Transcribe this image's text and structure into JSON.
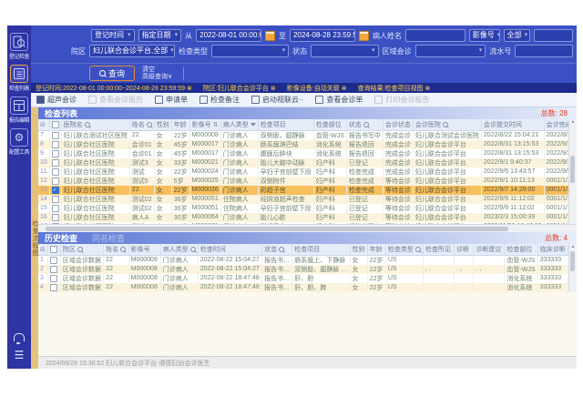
{
  "sidebar": {
    "items": [
      {
        "label": "登记检查"
      },
      {
        "label": "检查列表",
        "active": true
      },
      {
        "label": "报告编辑"
      },
      {
        "label": "配置工具"
      }
    ]
  },
  "side_tab": {
    "label": "检查流程图"
  },
  "filters": {
    "reg_time_value": "登记时间",
    "date_mode_value": "指定日期",
    "from_label": "从",
    "from_value": "2022-08-01 00:00:00",
    "to_label": "至",
    "to_value": "2024-08-28 23:59:59",
    "patient_name_label": "病人姓名",
    "patient_name_value": "",
    "image_no_label": "影像号",
    "image_no_all": "全部",
    "image_no_value": "",
    "campus_label": "院区",
    "campus_value": "妇儿联合会诊平台,全部",
    "exam_type_label": "检查类型",
    "exam_type_value": "",
    "status_label": "状态",
    "status_value": "",
    "region_label": "区域会诊",
    "region_value": "",
    "serial_label": "流水号",
    "serial_value": "",
    "query_label": "查询",
    "clear_label": "清空",
    "advanced_label": "高级查询∨",
    "chips": [
      "登记时间:2022-08-01 00:00:00~2024-08-28 23:59:59",
      "院区:妇儿联合会诊平台",
      "影像设备:自动关联",
      "查询结果:检查项目视图"
    ]
  },
  "toolbar": {
    "items": [
      {
        "label": "超声会诊",
        "disabled": false
      },
      {
        "label": "查看会诊报告",
        "disabled": true
      },
      {
        "label": "申请单",
        "disabled": false
      },
      {
        "label": "检查备注",
        "disabled": false
      },
      {
        "label": "启动视联云··",
        "disabled": false
      },
      {
        "label": "查看会诊单",
        "disabled": false
      },
      {
        "label": "打印会诊报告",
        "disabled": true
      }
    ]
  },
  "main_table": {
    "title": "检查列表",
    "total_label": "总数:",
    "total": "28",
    "columns": [
      {
        "label": "医院名",
        "icon": "search"
      },
      {
        "label": "姓名",
        "icon": "search"
      },
      {
        "label": "性别"
      },
      {
        "label": "年龄"
      },
      {
        "label": "影像号",
        "icon": "sort"
      },
      {
        "label": "病人类型",
        "icon": "filter"
      },
      {
        "label": "检查项目"
      },
      {
        "label": "检查部位"
      },
      {
        "label": "状态",
        "icon": "search"
      },
      {
        "label": "会诊状态"
      },
      {
        "label": "会诊医院",
        "icon": "search"
      },
      {
        "label": "会诊提交时间"
      },
      {
        "label": "会诊完成时间"
      },
      {
        "label": "流水号"
      },
      {
        "label": "检查类型",
        "icon": "search"
      }
    ],
    "rows": [
      {
        "num": "7",
        "checked": false,
        "selected": false,
        "cells": [
          "妇儿联合测试社区医院",
          "22",
          "女",
          "22岁",
          "M000008",
          "门诊病人",
          "双侧股、腘静脉",
          "血管-WJS",
          "报告书写中",
          "完成会诊",
          "妇儿联合测试会诊医院",
          "2022/8/22 15:04:21",
          "2022/8/22 16:18:11",
          "test7",
          "US"
        ]
      },
      {
        "num": "8",
        "checked": false,
        "selected": false,
        "cells": [
          "妇儿联合社区医院",
          "会诊01",
          "女",
          "45岁",
          "M000017",
          "门诊病人",
          "肠系膜淋巴结",
          "消化系统",
          "报告退回",
          "完成会诊",
          "妇儿联合会诊平台",
          "2022/8/31 13:15:53",
          "2022/9/2 14:32:26",
          "test36",
          "US"
        ]
      },
      {
        "num": "9",
        "checked": false,
        "selected": false,
        "cells": [
          "妇儿联合社区医院",
          "会诊01",
          "女",
          "45岁",
          "M000017",
          "门诊病人",
          "腹膜后肿块",
          "消化系统",
          "报告退回",
          "完成会诊",
          "妇儿联合会诊平台",
          "2022/8/31 13:15:53",
          "2022/9/2 14:32:26",
          "test20",
          "US"
        ]
      },
      {
        "num": "10",
        "checked": false,
        "selected": false,
        "cells": [
          "妇儿联合社区医院",
          "测试3",
          "女",
          "33岁",
          "M000021",
          "门诊病人",
          "胎儿大脑中动脉",
          "妇产科",
          "已登记",
          "完成会诊",
          "妇儿联合会诊平台",
          "2022/9/1 9:40:37",
          "2022/9/1 9:50:49",
          "test23",
          "US"
        ]
      },
      {
        "num": "11",
        "checked": false,
        "selected": false,
        "cells": [
          "妇儿联合社区医院",
          "测试",
          "女",
          "22岁",
          "M000024",
          "门诊病人",
          "孕妇子宫前壁下段",
          "妇产科",
          "检查完成",
          "完成会诊",
          "妇儿联合会诊平台",
          "2022/9/5 13:43:57",
          "2022/9/5 14:04:59",
          "test32",
          "US"
        ]
      },
      {
        "num": "12",
        "checked": false,
        "selected": false,
        "cells": [
          "妇儿联合社区医院",
          "测试5",
          "女",
          "5岁",
          "M000025",
          "门诊病人",
          "双侧附件",
          "妇产科",
          "检查完成",
          "等待会诊",
          "妇儿联合会诊平台",
          "2022/9/1 10:11:13",
          "0001/1/1 0:00:00",
          "test25",
          "US"
        ]
      },
      {
        "num": "13",
        "checked": true,
        "selected": true,
        "cells": [
          "妇儿联合社区医院",
          "22",
          "女",
          "22岁",
          "M000026",
          "门诊病人",
          "彩超子宫",
          "妇产科",
          "检查完成",
          "等待会诊",
          "妇儿联合会诊平台",
          "2022/9/7 14:29:00",
          "0001/1/1 0:00:00",
          "test41",
          "US"
        ]
      },
      {
        "num": "14",
        "checked": false,
        "selected": false,
        "cells": [
          "妇儿联合社区医院",
          "测试02",
          "女",
          "36岁",
          "M000051",
          "住院病人",
          "经阴道超声检查",
          "妇产科",
          "已登记",
          "等待会诊",
          "妇儿联合会诊平台",
          "2022/9/9 11:12:02",
          "0001/1/1 0:00:00",
          "test47",
          "US"
        ]
      },
      {
        "num": "15",
        "checked": false,
        "selected": false,
        "cells": [
          "妇儿联合社区医院",
          "测试02",
          "女",
          "36岁",
          "M000051",
          "住院病人",
          "孕妇子宫前壁下段",
          "妇产科",
          "已登记",
          "等待会诊",
          "妇儿联合会诊平台",
          "2022/9/9 11:12:02",
          "0001/1/1 0:00:00",
          "test46",
          "US"
        ]
      },
      {
        "num": "16",
        "checked": false,
        "selected": false,
        "cells": [
          "妇儿联合社区医院",
          "病人A",
          "女",
          "30岁",
          "M000064",
          "门诊病人",
          "胎儿心脏",
          "妇产科",
          "已登记",
          "等待会诊",
          "妇儿联合会诊平台",
          "2023/2/3 15:00:39",
          "0001/1/1 0:00:00",
          "test56",
          "US"
        ]
      },
      {
        "num": "17",
        "checked": false,
        "selected": false,
        "cells": [
          "妇儿联合社区医院",
          "测试",
          "女",
          "22岁",
          "M000071",
          "门诊病人",
          "彩超子宫",
          "妇产科",
          "报告书写中",
          "等待会诊",
          "妇儿联合会诊平台",
          "2022/11/30 10:47:03",
          "0001/1/1 0:00:00",
          "test69",
          "US"
        ]
      }
    ]
  },
  "history_table": {
    "tabs": [
      "历史检查",
      "同名检查"
    ],
    "total_label": "总数:",
    "total": "4",
    "columns": [
      {
        "label": "院区",
        "icon": "search"
      },
      {
        "label": "姓名",
        "icon": "search"
      },
      {
        "label": "影像号"
      },
      {
        "label": "病人类型",
        "icon": "search"
      },
      {
        "label": "检查时间"
      },
      {
        "label": "状态",
        "icon": "search"
      },
      {
        "label": "检查项目"
      },
      {
        "label": "性别"
      },
      {
        "label": "年龄"
      },
      {
        "label": "检查类型",
        "icon": "search"
      },
      {
        "label": "检查所见"
      },
      {
        "label": "诊断"
      },
      {
        "label": "诊断建议"
      },
      {
        "label": "检查部位"
      },
      {
        "label": "临床诊断"
      }
    ],
    "rows": [
      {
        "num": "1",
        "checked": false,
        "selected": false,
        "cells": [
          "区域会诊数据",
          "22",
          "M000008",
          "门诊病人",
          "2022-08-22 15:04:27",
          "报告书…",
          "肠系膜上、下静脉",
          "女",
          "22岁",
          "US",
          "",
          "",
          "",
          "血管-WJS",
          "333333"
        ]
      },
      {
        "num": "2",
        "checked": false,
        "selected": false,
        "cells": [
          "区域会诊数据",
          "22",
          "M000008",
          "门诊病人",
          "2022-08-22 15:04:27",
          "报告书…",
          "双侧股、腘静脉 …",
          "女",
          "22岁",
          "US",
          ", .",
          ". ,",
          ". ,",
          "血管-WJS",
          "333333"
        ]
      },
      {
        "num": "3",
        "checked": false,
        "selected": false,
        "cells": [
          "区域会诊数据",
          "22",
          "M000008",
          "门诊病人",
          "2022-08-22 18:47:48",
          "报告书…",
          "肝、胆",
          "女",
          "22岁",
          "US",
          "",
          "",
          "",
          "消化系统",
          "333333"
        ]
      },
      {
        "num": "4",
        "checked": false,
        "selected": false,
        "cells": [
          "区域会诊数据",
          "22",
          "M000008",
          "门诊病人",
          "2022-08-22 18:47:48",
          "报告书…",
          "肝、胆、脾",
          "女",
          "22岁",
          "US",
          "",
          "",
          "",
          "消化系统",
          "333333"
        ]
      }
    ]
  },
  "status_bar": {
    "text": "2024/08/28 15:36:52    妇儿联合会诊平台-顺德妇幼会诊医生"
  }
}
